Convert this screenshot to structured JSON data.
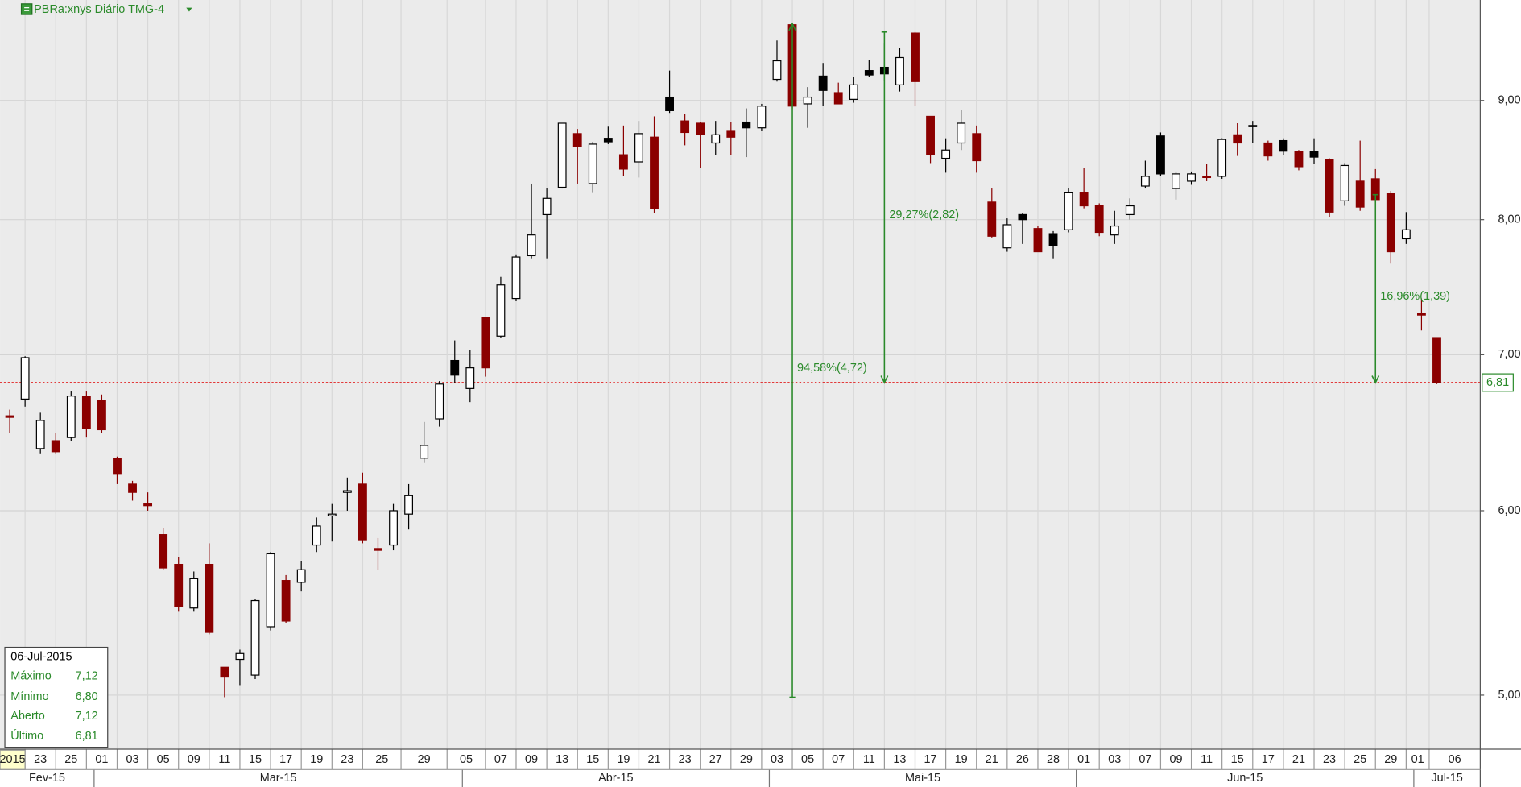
{
  "chart_data": {
    "type": "candlestick",
    "title": "PBRa:xnys Diário TMG-4",
    "log": true,
    "grid": true,
    "ylim": [
      4.74,
      9.94
    ],
    "yticks": [
      {
        "value": 5,
        "label": "5,00"
      },
      {
        "value": 6,
        "label": "6,00"
      },
      {
        "value": 7,
        "label": "7,00"
      },
      {
        "value": 8,
        "label": "8,00"
      },
      {
        "value": 9,
        "label": "9,00"
      }
    ],
    "categories": [
      "2015",
      null,
      "23",
      null,
      "25",
      null,
      "01",
      null,
      "03",
      null,
      "05",
      null,
      "09",
      null,
      "11",
      null,
      "15",
      null,
      "17",
      null,
      "19",
      null,
      "23",
      null,
      "25",
      null,
      null,
      "29",
      null,
      null,
      "05",
      null,
      "07",
      null,
      "09",
      null,
      "13",
      null,
      "15",
      null,
      "19",
      null,
      "21",
      null,
      "23",
      null,
      "27",
      null,
      "29",
      null,
      "03",
      null,
      "05",
      null,
      "07",
      null,
      "11",
      null,
      "13",
      null,
      "17",
      null,
      "19",
      null,
      "21",
      null,
      "26",
      null,
      "28",
      null,
      "01",
      null,
      "03",
      null,
      "07",
      null,
      "09",
      null,
      "11",
      null,
      "15",
      null,
      "17",
      null,
      "21",
      null,
      "23",
      null,
      "25",
      null,
      "29",
      null,
      "01",
      "06"
    ],
    "months": [
      "Fev-15",
      "Mar-15",
      "Abr-15",
      "Mai-15",
      "Jun-15",
      "Jul-15"
    ],
    "open": [
      6.59,
      6.7,
      6.38,
      6.43,
      6.45,
      6.72,
      6.69,
      6.32,
      6.16,
      6.04,
      5.86,
      5.69,
      5.45,
      5.69,
      5.14,
      5.18,
      5.1,
      5.35,
      5.6,
      5.59,
      5.8,
      5.97,
      6.11,
      6.16,
      5.78,
      5.8,
      5.98,
      6.32,
      6.57,
      6.86,
      6.77,
      7.26,
      7.13,
      7.4,
      7.72,
      8.04,
      8.26,
      8.71,
      8.29,
      8.64,
      8.53,
      8.47,
      8.68,
      8.91,
      8.82,
      8.8,
      8.63,
      8.73,
      8.76,
      8.76,
      9.19,
      9.7,
      8.97,
      9.09,
      9.07,
      9.01,
      9.23,
      9.24,
      9.14,
      9.62,
      8.86,
      8.5,
      8.63,
      8.71,
      8.14,
      7.78,
      8.0,
      7.93,
      7.8,
      7.92,
      8.22,
      8.11,
      7.88,
      8.04,
      8.27,
      8.37,
      8.25,
      8.31,
      8.35,
      8.35,
      8.7,
      8.77,
      8.63,
      8.56,
      8.56,
      8.51,
      8.49,
      8.15,
      8.31,
      8.33,
      8.21,
      7.85,
      7.29,
      7.12
    ],
    "high": [
      6.63,
      6.99,
      6.61,
      6.48,
      6.75,
      6.75,
      6.73,
      6.33,
      6.18,
      6.11,
      5.9,
      5.73,
      5.65,
      5.81,
      5.14,
      5.23,
      5.5,
      5.76,
      5.63,
      5.71,
      5.96,
      6.04,
      6.2,
      6.23,
      5.84,
      6.04,
      6.16,
      6.55,
      6.82,
      7.1,
      7.03,
      7.26,
      7.56,
      7.73,
      8.29,
      8.25,
      8.8,
      8.75,
      8.64,
      8.77,
      8.78,
      8.82,
      8.86,
      9.27,
      8.88,
      8.81,
      8.82,
      8.81,
      8.93,
      8.97,
      9.55,
      9.71,
      9.12,
      9.34,
      9.16,
      9.21,
      9.37,
      9.52,
      9.48,
      9.63,
      8.86,
      8.67,
      8.92,
      8.78,
      8.25,
      8.01,
      8.05,
      7.95,
      7.91,
      8.25,
      8.42,
      8.13,
      8.07,
      8.17,
      8.48,
      8.72,
      8.39,
      8.39,
      8.45,
      8.67,
      8.8,
      8.82,
      8.65,
      8.67,
      8.57,
      8.67,
      8.5,
      8.46,
      8.65,
      8.41,
      8.23,
      8.06,
      7.4,
      7.12
    ],
    "low": [
      6.48,
      6.65,
      6.35,
      6.35,
      6.43,
      6.45,
      6.48,
      6.16,
      6.06,
      6.0,
      5.66,
      5.43,
      5.43,
      5.31,
      4.99,
      5.05,
      5.08,
      5.33,
      5.37,
      5.54,
      5.76,
      5.82,
      6.0,
      5.81,
      5.66,
      5.77,
      5.89,
      6.29,
      6.52,
      6.81,
      6.68,
      6.85,
      7.12,
      7.38,
      7.7,
      7.7,
      8.25,
      8.29,
      8.22,
      8.62,
      8.35,
      8.34,
      8.05,
      8.89,
      8.61,
      8.42,
      8.53,
      8.53,
      8.51,
      8.73,
      9.17,
      8.93,
      8.76,
      8.95,
      8.97,
      8.98,
      9.21,
      9.18,
      9.08,
      8.95,
      8.46,
      8.38,
      8.57,
      8.38,
      7.86,
      7.75,
      7.81,
      7.75,
      7.7,
      7.9,
      8.09,
      7.87,
      7.81,
      8.0,
      8.25,
      8.35,
      8.16,
      8.28,
      8.31,
      8.33,
      8.52,
      8.63,
      8.48,
      8.53,
      8.4,
      8.45,
      8.02,
      8.11,
      8.07,
      8.09,
      7.66,
      7.81,
      7.17,
      6.8
    ],
    "close": [
      6.58,
      6.98,
      6.56,
      6.36,
      6.72,
      6.51,
      6.5,
      6.22,
      6.11,
      6.03,
      5.67,
      5.46,
      5.61,
      5.32,
      5.09,
      5.21,
      5.49,
      5.75,
      5.38,
      5.66,
      5.91,
      5.98,
      6.12,
      5.83,
      5.77,
      6.0,
      6.09,
      6.4,
      6.8,
      6.96,
      6.91,
      6.91,
      7.5,
      7.71,
      7.88,
      8.17,
      8.8,
      8.6,
      8.62,
      8.67,
      8.41,
      8.71,
      8.09,
      9.03,
      8.72,
      8.7,
      8.7,
      8.68,
      8.81,
      8.95,
      9.36,
      8.95,
      9.03,
      9.22,
      8.97,
      9.14,
      9.27,
      9.3,
      9.39,
      9.17,
      8.53,
      8.57,
      8.8,
      8.48,
      7.87,
      7.96,
      8.04,
      7.75,
      7.89,
      8.22,
      8.11,
      7.9,
      7.95,
      8.11,
      8.35,
      8.69,
      8.37,
      8.37,
      8.34,
      8.66,
      8.63,
      8.78,
      8.52,
      8.65,
      8.43,
      8.56,
      8.06,
      8.44,
      8.1,
      8.16,
      7.75,
      7.92,
      7.28,
      6.81
    ],
    "candle_colors": [
      "#8b0000",
      "#ffffff",
      "#ffffff",
      "#8b0000",
      "#ffffff",
      "#8b0000",
      "#8b0000",
      "#8b0000",
      "#8b0000",
      "#8b0000",
      "#8b0000",
      "#8b0000",
      "#ffffff",
      "#8b0000",
      "#8b0000",
      "#ffffff",
      "#ffffff",
      "#ffffff",
      "#8b0000",
      "#ffffff",
      "#ffffff",
      "#ffffff",
      "#ffffff",
      "#8b0000",
      "#8b0000",
      "#ffffff",
      "#ffffff",
      "#ffffff",
      "#ffffff",
      "#000000",
      "#ffffff",
      "#8b0000",
      "#ffffff",
      "#ffffff",
      "#ffffff",
      "#ffffff",
      "#ffffff",
      "#8b0000",
      "#ffffff",
      "#000000",
      "#8b0000",
      "#ffffff",
      "#8b0000",
      "#000000",
      "#8b0000",
      "#8b0000",
      "#ffffff",
      "#8b0000",
      "#000000",
      "#ffffff",
      "#ffffff",
      "#8b0000",
      "#ffffff",
      "#000000",
      "#8b0000",
      "#ffffff",
      "#000000",
      "#000000",
      "#ffffff",
      "#8b0000",
      "#8b0000",
      "#ffffff",
      "#ffffff",
      "#8b0000",
      "#8b0000",
      "#ffffff",
      "#000000",
      "#8b0000",
      "#000000",
      "#ffffff",
      "#8b0000",
      "#8b0000",
      "#ffffff",
      "#ffffff",
      "#ffffff",
      "#000000",
      "#ffffff",
      "#ffffff",
      "#8b0000",
      "#ffffff",
      "#8b0000",
      "#000000",
      "#8b0000",
      "#000000",
      "#8b0000",
      "#000000",
      "#8b0000",
      "#ffffff",
      "#8b0000",
      "#8b0000",
      "#8b0000",
      "#ffffff",
      "#8b0000",
      "#8b0000"
    ],
    "last_price": {
      "value": 6.81,
      "label": "6,81",
      "color": "#e00000"
    },
    "annotations": [
      {
        "text": "94,58%(4,72)",
        "index": 51,
        "from": 4.99,
        "to": 9.71
      },
      {
        "text": "29,27%(2,82)",
        "index": 57,
        "from": 9.63,
        "to": 6.81
      },
      {
        "text": "16,96%(1,39)",
        "index": 89,
        "from": 8.2,
        "to": 6.81
      }
    ],
    "annotation_color": "#2a8a2a"
  },
  "info_box": {
    "date": "06-Jul-2015",
    "rows": [
      {
        "label": "Máximo",
        "value": "7,12"
      },
      {
        "label": "Mínimo",
        "value": "6,80"
      },
      {
        "label": "Aberto",
        "value": "7,12"
      },
      {
        "label": "Último",
        "value": "6,81"
      }
    ]
  }
}
